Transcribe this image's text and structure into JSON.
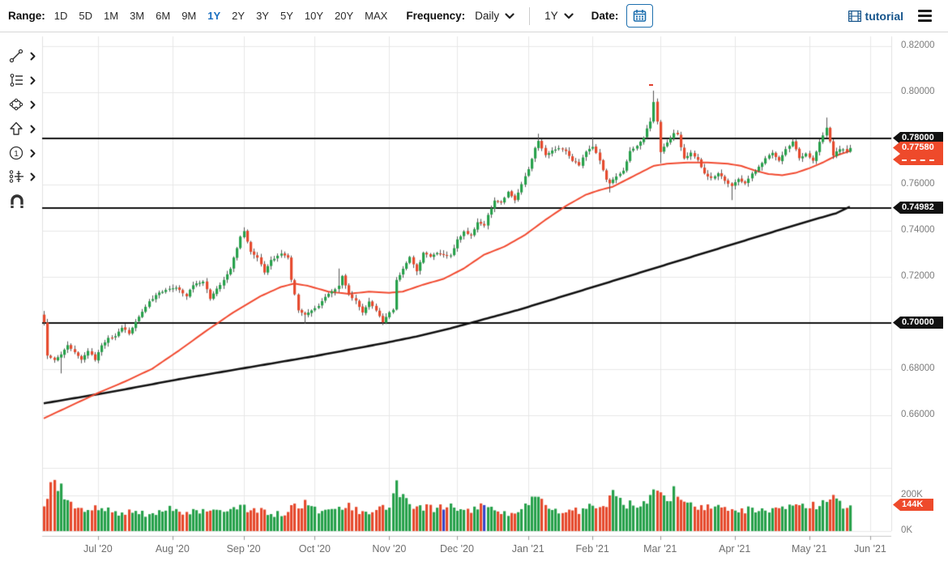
{
  "toolbar": {
    "range_label": "Range:",
    "range_options": [
      "1D",
      "5D",
      "1M",
      "3M",
      "6M",
      "9M",
      "1Y",
      "2Y",
      "3Y",
      "5Y",
      "10Y",
      "20Y",
      "MAX"
    ],
    "range_selected": "1Y",
    "frequency_label": "Frequency:",
    "frequency_value": "Daily",
    "period_value": "1Y",
    "date_label": "Date:",
    "tutorial_label": "tutorial"
  },
  "side_tools": [
    "trend-line",
    "fibonacci",
    "ellipse-shape",
    "arrow",
    "annotation-number-1",
    "indicator-settings",
    "magnet"
  ],
  "badges": {
    "resistance_line": "0.78000",
    "last_price": "0.77580",
    "mid_line": "0.74982",
    "support_line": "0.70000",
    "volume": "144K"
  },
  "colors": {
    "accent_blue": "#1a6fc0",
    "tutorial_blue": "#17558c",
    "candle_up": "#27a14b",
    "candle_down": "#e64a2e",
    "volume_neutral_blue": "#3746c8",
    "ma_fast_red": "#f1492f",
    "ma_slow_black": "#111111",
    "badge_black": "#111111",
    "badge_orange": "#ee4a2b",
    "grid": "#e7e7e7",
    "axis_text": "#7c7c7c"
  },
  "chart_data": {
    "type": "candlestick",
    "panes": [
      "price",
      "volume"
    ],
    "ylim": [
      0.637,
      0.824
    ],
    "last_close": 0.7758,
    "price_ticks": [
      {
        "label": "0.82000",
        "value": 0.82
      },
      {
        "label": "0.80000",
        "value": 0.8
      },
      {
        "label": "0.78000",
        "value": 0.78
      },
      {
        "label": "0.76000",
        "value": 0.76
      },
      {
        "label": "0.74000",
        "value": 0.74
      },
      {
        "label": "0.72000",
        "value": 0.72
      },
      {
        "label": "0.70000",
        "value": 0.7
      },
      {
        "label": "0.68000",
        "value": 0.68
      },
      {
        "label": "0.66000",
        "value": 0.66
      }
    ],
    "volume_ticks": [
      {
        "label": "200K",
        "value": 200
      },
      {
        "label": "0K",
        "value": 0
      }
    ],
    "time_ticks": [
      {
        "label": "Jul '20",
        "day": 16
      },
      {
        "label": "Aug '20",
        "day": 38
      },
      {
        "label": "Sep '20",
        "day": 59
      },
      {
        "label": "Oct '20",
        "day": 80
      },
      {
        "label": "Nov '20",
        "day": 102
      },
      {
        "label": "Dec '20",
        "day": 122
      },
      {
        "label": "Jan '21",
        "day": 143
      },
      {
        "label": "Feb '21",
        "day": 162
      },
      {
        "label": "Mar '21",
        "day": 182
      },
      {
        "label": "Apr '21",
        "day": 204
      },
      {
        "label": "May '21",
        "day": 226
      },
      {
        "label": "Jun '21",
        "day": 244
      }
    ],
    "days_shown": 250,
    "last_day": 238,
    "horizontal_lines": [
      0.78,
      0.74982,
      0.7
    ],
    "close_anchors": [
      [
        0,
        0.7
      ],
      [
        1,
        0.686
      ],
      [
        3,
        0.684
      ],
      [
        5,
        0.686
      ],
      [
        7,
        0.69
      ],
      [
        9,
        0.687
      ],
      [
        11,
        0.684
      ],
      [
        13,
        0.688
      ],
      [
        15,
        0.684
      ],
      [
        17,
        0.69
      ],
      [
        19,
        0.6935
      ],
      [
        21,
        0.694
      ],
      [
        23,
        0.698
      ],
      [
        25,
        0.6955
      ],
      [
        28,
        0.7025
      ],
      [
        31,
        0.709
      ],
      [
        33,
        0.712
      ],
      [
        36,
        0.7145
      ],
      [
        39,
        0.7155
      ],
      [
        42,
        0.7115
      ],
      [
        44,
        0.7165
      ],
      [
        47,
        0.718
      ],
      [
        49,
        0.7105
      ],
      [
        52,
        0.7165
      ],
      [
        55,
        0.7235
      ],
      [
        58,
        0.737
      ],
      [
        59,
        0.7395
      ],
      [
        61,
        0.731
      ],
      [
        63,
        0.7285
      ],
      [
        65,
        0.722
      ],
      [
        67,
        0.727
      ],
      [
        70,
        0.73
      ],
      [
        72,
        0.7285
      ],
      [
        73,
        0.7185
      ],
      [
        75,
        0.7055
      ],
      [
        77,
        0.7035
      ],
      [
        79,
        0.7055
      ],
      [
        81,
        0.7075
      ],
      [
        83,
        0.7115
      ],
      [
        85,
        0.7135
      ],
      [
        87,
        0.716
      ],
      [
        88,
        0.7205
      ],
      [
        90,
        0.712
      ],
      [
        92,
        0.7095
      ],
      [
        94,
        0.7045
      ],
      [
        96,
        0.7095
      ],
      [
        98,
        0.7055
      ],
      [
        100,
        0.7005
      ],
      [
        102,
        0.7045
      ],
      [
        103,
        0.7055
      ],
      [
        104,
        0.7185
      ],
      [
        106,
        0.7235
      ],
      [
        108,
        0.7285
      ],
      [
        110,
        0.7225
      ],
      [
        112,
        0.7305
      ],
      [
        114,
        0.7285
      ],
      [
        116,
        0.7305
      ],
      [
        118,
        0.7295
      ],
      [
        120,
        0.729
      ],
      [
        122,
        0.736
      ],
      [
        124,
        0.7395
      ],
      [
        126,
        0.738
      ],
      [
        128,
        0.7435
      ],
      [
        130,
        0.742
      ],
      [
        131,
        0.7465
      ],
      [
        133,
        0.753
      ],
      [
        135,
        0.752
      ],
      [
        137,
        0.757
      ],
      [
        139,
        0.753
      ],
      [
        141,
        0.76
      ],
      [
        143,
        0.7665
      ],
      [
        145,
        0.776
      ],
      [
        146,
        0.779
      ],
      [
        148,
        0.7725
      ],
      [
        150,
        0.775
      ],
      [
        152,
        0.7755
      ],
      [
        154,
        0.7745
      ],
      [
        156,
        0.7705
      ],
      [
        158,
        0.7685
      ],
      [
        160,
        0.7745
      ],
      [
        162,
        0.7765
      ],
      [
        164,
        0.7705
      ],
      [
        166,
        0.762
      ],
      [
        167,
        0.7605
      ],
      [
        169,
        0.7635
      ],
      [
        171,
        0.766
      ],
      [
        173,
        0.7745
      ],
      [
        175,
        0.7765
      ],
      [
        177,
        0.7805
      ],
      [
        179,
        0.7875
      ],
      [
        180,
        0.796
      ],
      [
        181,
        0.787
      ],
      [
        182,
        0.774
      ],
      [
        184,
        0.7785
      ],
      [
        186,
        0.782
      ],
      [
        187,
        0.7815
      ],
      [
        189,
        0.7715
      ],
      [
        191,
        0.7735
      ],
      [
        193,
        0.7705
      ],
      [
        195,
        0.7645
      ],
      [
        197,
        0.7625
      ],
      [
        199,
        0.765
      ],
      [
        201,
        0.7615
      ],
      [
        203,
        0.7595
      ],
      [
        205,
        0.7625
      ],
      [
        207,
        0.7605
      ],
      [
        209,
        0.7645
      ],
      [
        211,
        0.7675
      ],
      [
        213,
        0.7715
      ],
      [
        215,
        0.7735
      ],
      [
        217,
        0.7705
      ],
      [
        219,
        0.7755
      ],
      [
        221,
        0.7785
      ],
      [
        223,
        0.7715
      ],
      [
        225,
        0.7735
      ],
      [
        227,
        0.7705
      ],
      [
        229,
        0.7785
      ],
      [
        231,
        0.7845
      ],
      [
        233,
        0.7725
      ],
      [
        235,
        0.7755
      ],
      [
        237,
        0.7745
      ],
      [
        238,
        0.7758
      ]
    ],
    "wick_events": [
      [
        5,
        "low",
        0.678
      ],
      [
        59,
        "high",
        0.7414
      ],
      [
        77,
        "low",
        0.6995
      ],
      [
        87,
        "high",
        0.7235
      ],
      [
        100,
        "low",
        0.699
      ],
      [
        146,
        "high",
        0.782
      ],
      [
        162,
        "high",
        0.7805
      ],
      [
        167,
        "low",
        0.7565
      ],
      [
        180,
        "high",
        0.8007
      ],
      [
        182,
        "low",
        0.7692
      ],
      [
        203,
        "low",
        0.7532
      ],
      [
        231,
        "high",
        0.789
      ]
    ],
    "ma50_red": [
      [
        0,
        0.6585
      ],
      [
        8,
        0.664
      ],
      [
        16,
        0.6695
      ],
      [
        24,
        0.6745
      ],
      [
        32,
        0.68
      ],
      [
        40,
        0.688
      ],
      [
        48,
        0.6965
      ],
      [
        56,
        0.7045
      ],
      [
        64,
        0.7115
      ],
      [
        70,
        0.7155
      ],
      [
        74,
        0.717
      ],
      [
        78,
        0.716
      ],
      [
        84,
        0.7135
      ],
      [
        90,
        0.7125
      ],
      [
        96,
        0.7135
      ],
      [
        102,
        0.713
      ],
      [
        106,
        0.7135
      ],
      [
        112,
        0.7165
      ],
      [
        118,
        0.719
      ],
      [
        124,
        0.7235
      ],
      [
        130,
        0.7295
      ],
      [
        136,
        0.733
      ],
      [
        142,
        0.738
      ],
      [
        148,
        0.7445
      ],
      [
        154,
        0.7505
      ],
      [
        160,
        0.7555
      ],
      [
        164,
        0.7575
      ],
      [
        168,
        0.759
      ],
      [
        172,
        0.762
      ],
      [
        176,
        0.765
      ],
      [
        180,
        0.768
      ],
      [
        184,
        0.769
      ],
      [
        190,
        0.7695
      ],
      [
        196,
        0.7695
      ],
      [
        202,
        0.769
      ],
      [
        206,
        0.768
      ],
      [
        210,
        0.766
      ],
      [
        214,
        0.7645
      ],
      [
        218,
        0.764
      ],
      [
        222,
        0.765
      ],
      [
        226,
        0.767
      ],
      [
        230,
        0.7695
      ],
      [
        234,
        0.7725
      ],
      [
        238,
        0.7745
      ]
    ],
    "ma200_black": [
      [
        0,
        0.665
      ],
      [
        20,
        0.67
      ],
      [
        40,
        0.6755
      ],
      [
        60,
        0.6805
      ],
      [
        80,
        0.6855
      ],
      [
        100,
        0.691
      ],
      [
        110,
        0.694
      ],
      [
        120,
        0.6975
      ],
      [
        130,
        0.7015
      ],
      [
        140,
        0.7055
      ],
      [
        150,
        0.71
      ],
      [
        160,
        0.7145
      ],
      [
        170,
        0.719
      ],
      [
        180,
        0.7235
      ],
      [
        190,
        0.728
      ],
      [
        200,
        0.7325
      ],
      [
        210,
        0.737
      ],
      [
        220,
        0.7415
      ],
      [
        228,
        0.745
      ],
      [
        234,
        0.7475
      ],
      [
        238,
        0.7503
      ]
    ],
    "volume_anchors": [
      [
        0,
        150
      ],
      [
        1,
        185
      ],
      [
        2,
        235
      ],
      [
        3,
        255
      ],
      [
        4,
        245
      ],
      [
        5,
        235
      ],
      [
        6,
        185
      ],
      [
        8,
        150
      ],
      [
        10,
        120
      ],
      [
        12,
        110
      ],
      [
        14,
        130
      ],
      [
        16,
        140
      ],
      [
        18,
        135
      ],
      [
        20,
        95
      ],
      [
        22,
        100
      ],
      [
        24,
        110
      ],
      [
        26,
        115
      ],
      [
        28,
        105
      ],
      [
        30,
        92
      ],
      [
        32,
        96
      ],
      [
        34,
        110
      ],
      [
        36,
        120
      ],
      [
        38,
        125
      ],
      [
        40,
        100
      ],
      [
        42,
        95
      ],
      [
        44,
        110
      ],
      [
        46,
        100
      ],
      [
        48,
        125
      ],
      [
        50,
        135
      ],
      [
        52,
        120
      ],
      [
        54,
        110
      ],
      [
        56,
        130
      ],
      [
        58,
        140
      ],
      [
        60,
        120
      ],
      [
        62,
        115
      ],
      [
        64,
        110
      ],
      [
        66,
        95
      ],
      [
        68,
        92
      ],
      [
        70,
        100
      ],
      [
        72,
        112
      ],
      [
        74,
        140
      ],
      [
        76,
        145
      ],
      [
        78,
        155
      ],
      [
        80,
        130
      ],
      [
        82,
        105
      ],
      [
        84,
        120
      ],
      [
        86,
        140
      ],
      [
        88,
        132
      ],
      [
        90,
        135
      ],
      [
        92,
        120
      ],
      [
        94,
        96
      ],
      [
        96,
        110
      ],
      [
        98,
        102
      ],
      [
        100,
        140
      ],
      [
        102,
        125
      ],
      [
        104,
        330
      ],
      [
        105,
        205
      ],
      [
        106,
        210
      ],
      [
        107,
        190
      ],
      [
        108,
        150
      ],
      [
        110,
        130
      ],
      [
        112,
        135
      ],
      [
        114,
        125
      ],
      [
        116,
        130
      ],
      [
        118,
        135
      ],
      [
        120,
        140
      ],
      [
        122,
        130
      ],
      [
        124,
        112
      ],
      [
        126,
        115
      ],
      [
        128,
        130
      ],
      [
        130,
        140
      ],
      [
        132,
        125
      ],
      [
        134,
        105
      ],
      [
        136,
        96
      ],
      [
        138,
        100
      ],
      [
        140,
        112
      ],
      [
        142,
        135
      ],
      [
        144,
        215
      ],
      [
        145,
        230
      ],
      [
        146,
        180
      ],
      [
        148,
        140
      ],
      [
        150,
        112
      ],
      [
        152,
        105
      ],
      [
        154,
        100
      ],
      [
        156,
        110
      ],
      [
        158,
        115
      ],
      [
        160,
        125
      ],
      [
        162,
        135
      ],
      [
        164,
        150
      ],
      [
        166,
        160
      ],
      [
        167,
        230
      ],
      [
        168,
        215
      ],
      [
        170,
        165
      ],
      [
        172,
        150
      ],
      [
        174,
        145
      ],
      [
        176,
        155
      ],
      [
        178,
        160
      ],
      [
        180,
        230
      ],
      [
        181,
        220
      ],
      [
        182,
        245
      ],
      [
        184,
        170
      ],
      [
        186,
        235
      ],
      [
        188,
        180
      ],
      [
        190,
        160
      ],
      [
        192,
        150
      ],
      [
        194,
        140
      ],
      [
        196,
        130
      ],
      [
        198,
        125
      ],
      [
        200,
        135
      ],
      [
        202,
        130
      ],
      [
        204,
        120
      ],
      [
        206,
        115
      ],
      [
        208,
        120
      ],
      [
        210,
        125
      ],
      [
        212,
        130
      ],
      [
        214,
        125
      ],
      [
        216,
        130
      ],
      [
        218,
        140
      ],
      [
        220,
        135
      ],
      [
        222,
        160
      ],
      [
        224,
        150
      ],
      [
        226,
        145
      ],
      [
        228,
        140
      ],
      [
        230,
        150
      ],
      [
        232,
        185
      ],
      [
        234,
        160
      ],
      [
        236,
        152
      ],
      [
        238,
        144
      ]
    ],
    "blue_volume_days": [
      118,
      130
    ],
    "last_volume": 144
  }
}
